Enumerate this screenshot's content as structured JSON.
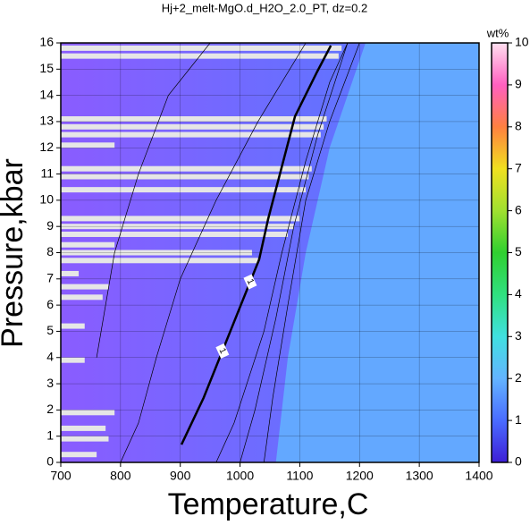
{
  "chart_data": {
    "type": "contour",
    "title": "Hj+2_melt-MgO.d_H2O_2.0_PT, dz=0.2",
    "xlabel": "Temperature,C",
    "ylabel": "Pressure,kbar",
    "xlim": [
      700,
      1400
    ],
    "xticks": [
      700,
      800,
      900,
      1000,
      1100,
      1200,
      1300,
      1400
    ],
    "ylim": [
      0,
      16
    ],
    "yticks": [
      0,
      1,
      2,
      3,
      4,
      5,
      6,
      7,
      8,
      9,
      10,
      11,
      12,
      13,
      14,
      15,
      16
    ],
    "grid": true,
    "background_color": "#63a8ff",
    "region": {
      "color_left": "#8a5cff",
      "color_right": "#5f74ff",
      "x": [
        700,
        1060,
        1080,
        1110,
        1150,
        1210,
        700
      ],
      "y": [
        0,
        0,
        4,
        8,
        12,
        16,
        16
      ]
    },
    "contours": [
      {
        "level": 1,
        "width": 2.5,
        "x": [
          902,
          939,
          1002,
          1032,
          1047,
          1092,
          1129,
          1152
        ],
        "y": [
          0.68,
          2.46,
          6.04,
          7.74,
          9.28,
          13.2,
          14.9,
          15.9
        ]
      },
      {
        "level": 1.2,
        "width": 0.7,
        "x": [
          960,
          990,
          1040,
          1070,
          1110,
          1150,
          1180
        ],
        "y": [
          0,
          1.5,
          5,
          8,
          11.5,
          14.5,
          16
        ]
      },
      {
        "level": 1.4,
        "width": 0.7,
        "x": [
          1000,
          1025,
          1060,
          1090,
          1130,
          1180
        ],
        "y": [
          0,
          2,
          5.5,
          9,
          12.5,
          16
        ]
      },
      {
        "level": 1.6,
        "width": 0.7,
        "x": [
          1040,
          1055,
          1080,
          1110,
          1150,
          1200
        ],
        "y": [
          0,
          2.5,
          6,
          10,
          13,
          16
        ]
      },
      {
        "level": 0.8,
        "width": 0.7,
        "x": [
          800,
          830,
          860,
          900,
          960,
          1030,
          1110
        ],
        "y": [
          0,
          1.5,
          4,
          7,
          10,
          13,
          16
        ]
      },
      {
        "level": 0.6,
        "width": 0.7,
        "x": [
          760,
          790,
          830,
          880,
          950
        ],
        "y": [
          4,
          8,
          11,
          14,
          16
        ]
      }
    ],
    "gaps": [
      {
        "x": [
          700,
          1170
        ],
        "y": 15.8
      },
      {
        "x": [
          700,
          1165
        ],
        "y": 15.5
      },
      {
        "x": [
          700,
          1145
        ],
        "y": 13.1
      },
      {
        "x": [
          700,
          1140
        ],
        "y": 12.8
      },
      {
        "x": [
          700,
          1135
        ],
        "y": 12.5
      },
      {
        "x": [
          700,
          790
        ],
        "y": 12.1
      },
      {
        "x": [
          700,
          1120
        ],
        "y": 11.2
      },
      {
        "x": [
          700,
          1115
        ],
        "y": 10.9
      },
      {
        "x": [
          700,
          1110
        ],
        "y": 10.4
      },
      {
        "x": [
          700,
          1100
        ],
        "y": 9.3
      },
      {
        "x": [
          700,
          1090
        ],
        "y": 9.0
      },
      {
        "x": [
          700,
          1080
        ],
        "y": 8.7
      },
      {
        "x": [
          700,
          790
        ],
        "y": 8.3
      },
      {
        "x": [
          700,
          1020
        ],
        "y": 8.0
      },
      {
        "x": [
          700,
          1030
        ],
        "y": 7.7
      },
      {
        "x": [
          700,
          730
        ],
        "y": 7.2
      },
      {
        "x": [
          700,
          780
        ],
        "y": 6.7
      },
      {
        "x": [
          700,
          770
        ],
        "y": 6.3
      },
      {
        "x": [
          700,
          740
        ],
        "y": 5.2
      },
      {
        "x": [
          700,
          740
        ],
        "y": 3.9
      },
      {
        "x": [
          700,
          790
        ],
        "y": 1.9
      },
      {
        "x": [
          700,
          775
        ],
        "y": 1.3
      },
      {
        "x": [
          700,
          780
        ],
        "y": 0.9
      },
      {
        "x": [
          700,
          760
        ],
        "y": 0.3
      }
    ],
    "gap_color": "#e6e6e6",
    "colorbar": {
      "label": "wt%",
      "lim": [
        0,
        10
      ],
      "ticks": [
        0,
        1,
        2,
        3,
        4,
        5,
        6,
        7,
        8,
        9,
        10
      ],
      "colors": [
        "#3d1fd6",
        "#4a6cff",
        "#63b4ff",
        "#40e0e0",
        "#30e080",
        "#30d030",
        "#a0e030",
        "#f0e020",
        "#ff8040",
        "#ff60c0",
        "#ffe0f0"
      ]
    }
  }
}
